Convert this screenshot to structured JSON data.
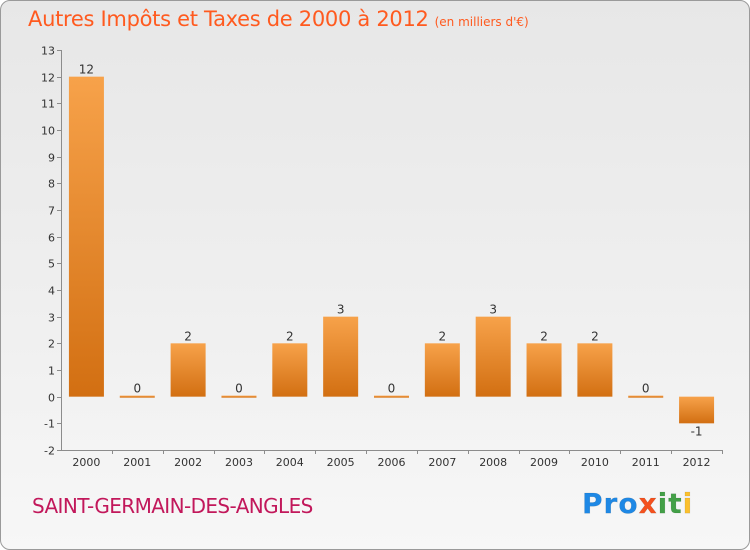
{
  "header": {
    "title": "Autres Impôts et Taxes de 2000 à 2012",
    "unit": "(en milliers d'€)"
  },
  "footer": {
    "commune": "SAINT-GERMAIN-DES-ANGLES",
    "logo_text": "Proxiti",
    "logo_letters": [
      {
        "ch": "P",
        "color": "#1e88e5"
      },
      {
        "ch": "r",
        "color": "#1e88e5"
      },
      {
        "ch": "o",
        "color": "#1e88e5"
      },
      {
        "ch": "x",
        "color": "#f4511e"
      },
      {
        "ch": "i",
        "color": "#43a047"
      },
      {
        "ch": "t",
        "color": "#43a047"
      },
      {
        "ch": "i",
        "color": "#fbc02d"
      }
    ]
  },
  "colors": {
    "title": "#ff5a1f",
    "commune": "#c2185b",
    "bar_light": "#f7a24a",
    "bar_dark": "#d26f12"
  },
  "chart_data": {
    "type": "bar",
    "categories": [
      "2000",
      "2001",
      "2002",
      "2003",
      "2004",
      "2005",
      "2006",
      "2007",
      "2008",
      "2009",
      "2010",
      "2011",
      "2012"
    ],
    "values": [
      12,
      0,
      2,
      0,
      2,
      3,
      0,
      2,
      3,
      2,
      2,
      0,
      -1
    ],
    "ylim": [
      -2,
      13
    ],
    "yticks": [
      -2,
      -1,
      0,
      1,
      2,
      3,
      4,
      5,
      6,
      7,
      8,
      9,
      10,
      11,
      12,
      13
    ],
    "xlabel": "",
    "ylabel": "",
    "grid": false
  }
}
